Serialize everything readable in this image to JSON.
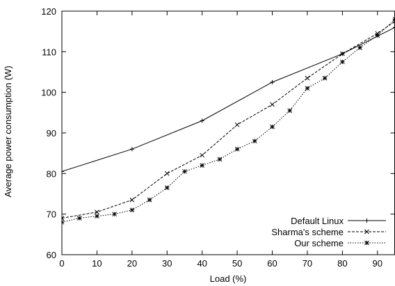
{
  "chart_data": {
    "type": "line",
    "title": "",
    "xlabel": "Load (%)",
    "ylabel": "Average power consumption (W)",
    "xlim": [
      0,
      95
    ],
    "ylim": [
      60,
      120
    ],
    "xticks": [
      0,
      10,
      20,
      30,
      40,
      50,
      60,
      70,
      80,
      90
    ],
    "yticks": [
      60,
      70,
      80,
      90,
      100,
      110,
      120
    ],
    "grid": false,
    "legend_position": "bottom-right",
    "series": [
      {
        "name": "Default Linux",
        "style": "solid",
        "marker": "plus",
        "color": "#000000",
        "points": [
          [
            0,
            80.5
          ],
          [
            20,
            86
          ],
          [
            40,
            93
          ],
          [
            60,
            102.5
          ],
          [
            80,
            109.5
          ],
          [
            95,
            116
          ]
        ]
      },
      {
        "name": "Sharma's scheme",
        "style": "dashed",
        "marker": "x",
        "color": "#000000",
        "points": [
          [
            0,
            69
          ],
          [
            10,
            70.5
          ],
          [
            20,
            73.5
          ],
          [
            30,
            80
          ],
          [
            40,
            84.5
          ],
          [
            50,
            92
          ],
          [
            60,
            97
          ],
          [
            70,
            103.5
          ],
          [
            80,
            109.5
          ],
          [
            90,
            114.5
          ],
          [
            95,
            117.5
          ]
        ]
      },
      {
        "name": "Our scheme",
        "style": "dotted",
        "marker": "star",
        "color": "#000000",
        "points": [
          [
            0,
            68
          ],
          [
            5,
            69
          ],
          [
            10,
            69.5
          ],
          [
            15,
            70
          ],
          [
            20,
            71
          ],
          [
            25,
            73.5
          ],
          [
            30,
            76.5
          ],
          [
            35,
            80.5
          ],
          [
            40,
            82
          ],
          [
            45,
            83.5
          ],
          [
            50,
            86
          ],
          [
            55,
            88
          ],
          [
            60,
            91.5
          ],
          [
            65,
            95.5
          ],
          [
            70,
            101
          ],
          [
            75,
            103.5
          ],
          [
            80,
            107.5
          ],
          [
            85,
            111
          ],
          [
            90,
            114
          ],
          [
            95,
            118
          ]
        ]
      }
    ]
  }
}
